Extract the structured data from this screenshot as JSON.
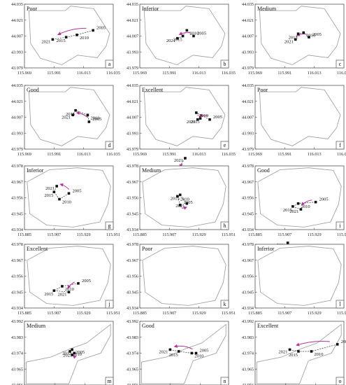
{
  "figure": {
    "colors": {
      "boundary": "#9a9a9a",
      "point": "#111111",
      "dash": "#333333",
      "arrow": "#b0339a",
      "axis": "#555555"
    },
    "rows": [
      {
        "xticks": [
          "115.969",
          "115.991",
          "116.013",
          "116.035"
        ],
        "yticks": [
          "44.035",
          "44.021",
          "44.007",
          "43.993",
          "43.979"
        ]
      },
      {
        "xticks": [
          "115.969",
          "115.991",
          "116.013",
          "116.035"
        ],
        "yticks": [
          "44.035",
          "44.021",
          "44.007",
          "43.993",
          "43.979"
        ]
      },
      {
        "xticks": [
          "115.885",
          "115.907",
          "115.929",
          "115.951"
        ],
        "yticks": [
          "43.978",
          "43.967",
          "43.956",
          "43.945",
          "43.934"
        ]
      },
      {
        "xticks": [
          "115.885",
          "115.907",
          "115.929",
          "115.951"
        ],
        "yticks": [
          "43.978",
          "43.967",
          "43.956",
          "43.945",
          "43.934"
        ]
      },
      {
        "xticks": [
          "115.967",
          "115.981",
          "115.995",
          "116.008"
        ],
        "yticks": [
          "43.992",
          "43.983",
          "43.974",
          "43.965",
          "43.956"
        ]
      }
    ]
  },
  "chart_data": [
    {
      "type": "scatter",
      "panel": "a",
      "title": "Poor",
      "points": [
        {
          "label": "2005",
          "x": 116.02,
          "y": 44.012
        },
        {
          "label": "2010",
          "x": 116.008,
          "y": 44.008
        },
        {
          "label": "2015",
          "x": 116.0,
          "y": 44.006
        },
        {
          "label": "2021",
          "x": 115.99,
          "y": 44.004
        }
      ]
    },
    {
      "type": "scatter",
      "panel": "b",
      "title": "Inferior",
      "points": [
        {
          "label": "2005",
          "x": 116.009,
          "y": 44.007
        },
        {
          "label": "2010",
          "x": 116.004,
          "y": 44.012
        },
        {
          "label": "2015",
          "x": 116.001,
          "y": 44.007
        },
        {
          "label": "2021",
          "x": 115.997,
          "y": 44.005
        }
      ]
    },
    {
      "type": "scatter",
      "panel": "c",
      "title": "Medium",
      "points": [
        {
          "label": "2005",
          "x": 116.009,
          "y": 44.006
        },
        {
          "label": "2010",
          "x": 116.005,
          "y": 44.01
        },
        {
          "label": "2015",
          "x": 116.001,
          "y": 44.009
        },
        {
          "label": "2021",
          "x": 115.999,
          "y": 44.004
        }
      ]
    },
    {
      "type": "scatter",
      "panel": "d",
      "title": "Good",
      "points": [
        {
          "label": "2005",
          "x": 116.017,
          "y": 44.003
        },
        {
          "label": "2010",
          "x": 116.016,
          "y": 44.009
        },
        {
          "label": "2015",
          "x": 116.007,
          "y": 44.013
        },
        {
          "label": "2021",
          "x": 116.005,
          "y": 44.009
        }
      ]
    },
    {
      "type": "scatter",
      "panel": "e",
      "title": "Excellent",
      "points": [
        {
          "label": "2005",
          "x": 116.021,
          "y": 44.005
        },
        {
          "label": "2010",
          "x": 116.011,
          "y": 44.011
        },
        {
          "label": "2015",
          "x": 116.014,
          "y": 44.006
        },
        {
          "label": "2021",
          "x": 116.012,
          "y": 44.005
        }
      ]
    },
    {
      "type": "scatter",
      "panel": "f",
      "title": "Poor",
      "points": [
        {
          "label": "2005",
          "x": 115.893,
          "y": 43.954
        },
        {
          "label": "2010",
          "x": 115.934,
          "y": 43.952
        },
        {
          "label": "2015",
          "x": 115.91,
          "y": 43.959
        },
        {
          "label": "2021",
          "x": 115.917,
          "y": 43.971
        }
      ]
    },
    {
      "type": "scatter",
      "panel": "g",
      "title": "Inferior",
      "points": [
        {
          "label": "2005",
          "x": 115.918,
          "y": 43.959
        },
        {
          "label": "2010",
          "x": 115.911,
          "y": 43.955
        },
        {
          "label": "2015",
          "x": 115.907,
          "y": 43.96
        },
        {
          "label": "2021",
          "x": 115.909,
          "y": 43.964
        }
      ]
    },
    {
      "type": "scatter",
      "panel": "h",
      "title": "Medium",
      "points": [
        {
          "label": "2005",
          "x": 115.915,
          "y": 43.951
        },
        {
          "label": "2010",
          "x": 115.913,
          "y": 43.957
        },
        {
          "label": "2015",
          "x": 115.915,
          "y": 43.958
        },
        {
          "label": "2021",
          "x": 115.92,
          "y": 43.952
        }
      ]
    },
    {
      "type": "scatter",
      "panel": "i",
      "title": "Good",
      "points": [
        {
          "label": "2005",
          "x": 115.93,
          "y": 43.953
        },
        {
          "label": "2010",
          "x": 115.917,
          "y": 43.952
        },
        {
          "label": "2015",
          "x": 115.913,
          "y": 43.95
        },
        {
          "label": "2021",
          "x": 115.919,
          "y": 43.948
        }
      ]
    },
    {
      "type": "scatter",
      "panel": "j",
      "title": "Excellent",
      "points": [
        {
          "label": "2005",
          "x": 115.925,
          "y": 43.951
        },
        {
          "label": "2010",
          "x": 115.913,
          "y": 43.949
        },
        {
          "label": "2015",
          "x": 115.907,
          "y": 43.946
        },
        {
          "label": "2021",
          "x": 115.918,
          "y": 43.945
        }
      ]
    },
    {
      "type": "scatter",
      "panel": "k",
      "title": "Poor",
      "points": [
        {
          "label": "2010",
          "x": 115.993,
          "y": 43.97
        },
        {
          "label": "2021",
          "x": 115.995,
          "y": 43.979
        }
      ]
    },
    {
      "type": "scatter",
      "panel": "l",
      "title": "Inferior",
      "points": [
        {
          "label": "2005",
          "x": 115.988,
          "y": 43.976
        },
        {
          "label": "2010",
          "x": 115.989,
          "y": 43.973
        },
        {
          "label": "2015",
          "x": 115.989,
          "y": 43.977
        },
        {
          "label": "2021",
          "x": 115.991,
          "y": 43.976
        }
      ]
    },
    {
      "type": "scatter",
      "panel": "m",
      "title": "Medium",
      "points": [
        {
          "label": "2005",
          "x": 115.989,
          "y": 43.973
        },
        {
          "label": "2010",
          "x": 115.988,
          "y": 43.975
        },
        {
          "label": "2015",
          "x": 115.989,
          "y": 43.976
        },
        {
          "label": "2021",
          "x": 115.99,
          "y": 43.974
        }
      ]
    },
    {
      "type": "scatter",
      "panel": "n",
      "title": "Good",
      "points": [
        {
          "label": "2005",
          "x": 115.993,
          "y": 43.974
        },
        {
          "label": "2010",
          "x": 115.991,
          "y": 43.974
        },
        {
          "label": "2015",
          "x": 115.985,
          "y": 43.975
        },
        {
          "label": "2021",
          "x": 115.981,
          "y": 43.976
        }
      ]
    },
    {
      "type": "scatter",
      "panel": "o",
      "title": "Excellent",
      "points": [
        {
          "label": "2005",
          "x": 116.005,
          "y": 43.979
        },
        {
          "label": "2010",
          "x": 115.993,
          "y": 43.975
        },
        {
          "label": "2015",
          "x": 115.987,
          "y": 43.975
        },
        {
          "label": "2021",
          "x": 115.983,
          "y": 43.976
        }
      ]
    }
  ]
}
